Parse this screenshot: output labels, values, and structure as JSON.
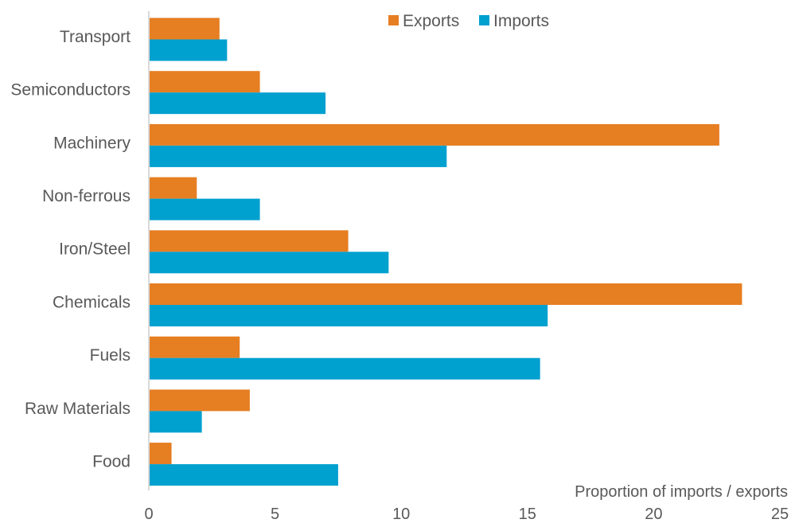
{
  "chart_data": {
    "type": "bar",
    "orientation": "horizontal",
    "categories": [
      "Transport",
      "Semiconductors",
      "Machinery",
      "Non-ferrous",
      "Iron/Steel",
      "Chemicals",
      "Fuels",
      "Raw Materials",
      "Food"
    ],
    "series": [
      {
        "name": "Exports",
        "color": "#E67E22",
        "values": [
          2.8,
          4.4,
          22.6,
          1.9,
          7.9,
          23.5,
          3.6,
          4.0,
          0.9
        ]
      },
      {
        "name": "Imports",
        "color": "#00A0CF",
        "values": [
          3.1,
          7.0,
          11.8,
          4.4,
          9.5,
          15.8,
          15.5,
          2.1,
          7.5
        ]
      }
    ],
    "xlabel": "Proportion of imports / exports",
    "xlim": [
      0,
      25
    ],
    "xticks": [
      "0",
      "5",
      "10",
      "15",
      "20",
      "25"
    ],
    "grid": false,
    "legend_position": "top"
  }
}
